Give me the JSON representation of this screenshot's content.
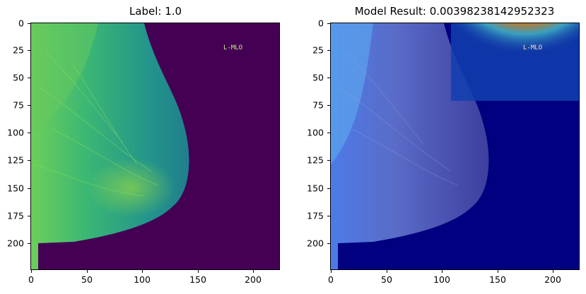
{
  "figure": {
    "left": {
      "title": "Label: 1.0",
      "yticks": [
        "0",
        "25",
        "50",
        "75",
        "100",
        "125",
        "150",
        "175",
        "200"
      ],
      "xticks": [
        "0",
        "50",
        "100",
        "150",
        "200"
      ],
      "overlay_text": "L-MLO"
    },
    "right": {
      "title": "Model Result: 0.00398238142952323",
      "yticks": [
        "0",
        "25",
        "50",
        "75",
        "100",
        "125",
        "150",
        "175",
        "200"
      ],
      "xticks": [
        "0",
        "50",
        "100",
        "150",
        "200"
      ],
      "overlay_text": "L-MLO"
    }
  },
  "colors": {
    "viridis_bg": "#440154",
    "viridis_tissue": "#21918c",
    "viridis_bright": "#7ad151",
    "jet_bg": "#000080",
    "jet_hot": "#b00000"
  }
}
